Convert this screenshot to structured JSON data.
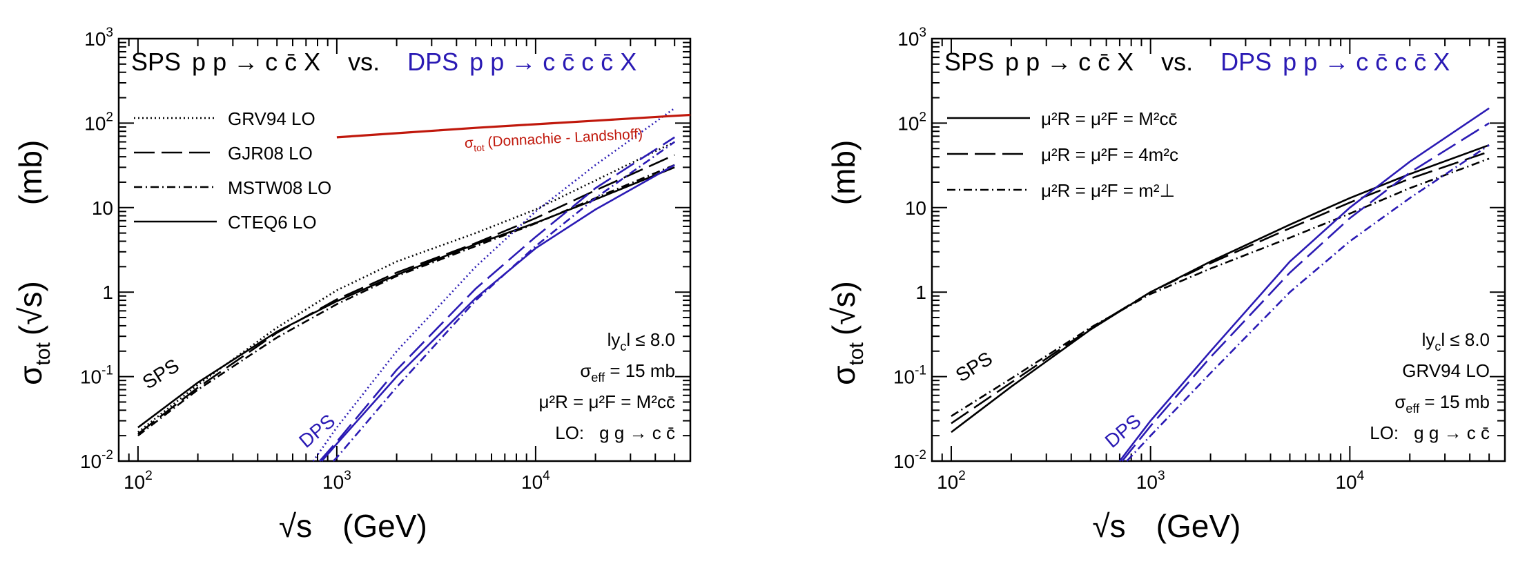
{
  "chart_data": [
    {
      "type": "line",
      "panel": "left",
      "title": {
        "sps_prefix": "SPS",
        "sps_process": "p p → c c̄ X",
        "vs": "vs.",
        "dps_prefix": "DPS",
        "dps_process": "p p → c c̄ c c̄ X"
      },
      "xlabel": {
        "symbol": "√s",
        "unit": "(GeV)"
      },
      "ylabel": {
        "symbol": "σ",
        "sub": "tot",
        "arg": "(√s)",
        "unit": "(mb)"
      },
      "xscale": "log",
      "yscale": "log",
      "xlim": [
        80,
        60000
      ],
      "ylim": [
        0.01,
        1000
      ],
      "x_ticks": [
        {
          "value": 100,
          "base": "10",
          "exp": "2"
        },
        {
          "value": 1000,
          "base": "10",
          "exp": "3"
        },
        {
          "value": 10000,
          "base": "10",
          "exp": "4"
        }
      ],
      "y_ticks": [
        {
          "value": 0.01,
          "base": "10",
          "exp": "-2"
        },
        {
          "value": 0.1,
          "base": "10",
          "exp": "-1"
        },
        {
          "value": 1,
          "base": "1",
          "exp": ""
        },
        {
          "value": 10,
          "base": "10",
          "exp": ""
        },
        {
          "value": 100,
          "base": "10",
          "exp": "2"
        },
        {
          "value": 1000,
          "base": "10",
          "exp": "3"
        }
      ],
      "legend_position": "top-left",
      "legend": [
        {
          "label": "GRV94 LO",
          "style": "dotted"
        },
        {
          "label": "GJR08 LO",
          "style": "long-dash"
        },
        {
          "label": "MSTW08 LO",
          "style": "dash-dot"
        },
        {
          "label": "CTEQ6 LO",
          "style": "solid"
        }
      ],
      "colors": {
        "sps": "#000000",
        "dps": "#2a1ab4",
        "total": "#c0180c"
      },
      "curve_labels": {
        "sps": "SPS",
        "dps": "DPS"
      },
      "total_label": {
        "sigma": "σ",
        "sub": "tot",
        "text": "(Donnachie - Landshoff)"
      },
      "info": {
        "rapidity": {
          "a": "ly",
          "sub": "c",
          "b": "l ≤ 8.0"
        },
        "sigma_eff": {
          "a": "σ",
          "sub": "eff",
          "b": " = 15 mb"
        },
        "scale": {
          "text": "μ²R = μ²F = M²cc̄"
        },
        "process": {
          "a": "LO:",
          "b": "g g → c c̄"
        }
      },
      "series": [
        {
          "name": "GRV94 LO",
          "kind": "SPS",
          "style": "dotted",
          "x": [
            100,
            200,
            500,
            1000,
            2000,
            5000,
            10000,
            20000,
            50000
          ],
          "y": [
            0.022,
            0.08,
            0.38,
            1.05,
            2.3,
            5.0,
            9.5,
            21,
            60
          ]
        },
        {
          "name": "GJR08 LO",
          "kind": "SPS",
          "style": "long-dash",
          "x": [
            100,
            200,
            500,
            1000,
            2000,
            5000,
            10000,
            20000,
            50000
          ],
          "y": [
            0.021,
            0.074,
            0.33,
            0.82,
            1.7,
            3.8,
            7.5,
            16,
            42
          ]
        },
        {
          "name": "MSTW08 LO",
          "kind": "SPS",
          "style": "dash-dot",
          "x": [
            100,
            200,
            500,
            1000,
            2000,
            5000,
            10000,
            20000,
            50000
          ],
          "y": [
            0.02,
            0.07,
            0.29,
            0.72,
            1.55,
            3.5,
            6.5,
            13,
            32
          ]
        },
        {
          "name": "CTEQ6 LO",
          "kind": "SPS",
          "style": "solid",
          "x": [
            100,
            200,
            500,
            1000,
            2000,
            5000,
            10000,
            20000,
            50000
          ],
          "y": [
            0.025,
            0.085,
            0.34,
            0.78,
            1.6,
            3.7,
            6.6,
            12.5,
            30
          ]
        },
        {
          "name": "GRV94 LO",
          "kind": "DPS",
          "style": "dotted",
          "x": [
            760,
            1000,
            2000,
            5000,
            10000,
            20000,
            50000
          ],
          "y": [
            0.01,
            0.025,
            0.2,
            2.0,
            9,
            32,
            150
          ]
        },
        {
          "name": "GJR08 LO",
          "kind": "DPS",
          "style": "long-dash",
          "x": [
            820,
            1000,
            2000,
            5000,
            10000,
            20000,
            50000
          ],
          "y": [
            0.01,
            0.017,
            0.12,
            1.1,
            4.5,
            17,
            68
          ]
        },
        {
          "name": "MSTW08 LO",
          "kind": "DPS",
          "style": "dash-dot",
          "x": [
            960,
            1000,
            2000,
            5000,
            10000,
            20000,
            50000
          ],
          "y": [
            0.01,
            0.011,
            0.075,
            0.8,
            3.5,
            13,
            60
          ]
        },
        {
          "name": "CTEQ6 LO",
          "kind": "DPS",
          "style": "solid",
          "x": [
            840,
            1000,
            2000,
            5000,
            10000,
            20000,
            50000
          ],
          "y": [
            0.01,
            0.016,
            0.1,
            0.85,
            3.3,
            9.5,
            32
          ]
        },
        {
          "name": "σtot (Donnachie - Landshoff)",
          "kind": "total",
          "style": "solid",
          "x": [
            1000,
            2000,
            5000,
            10000,
            20000,
            50000,
            60000
          ],
          "y": [
            68,
            76,
            88,
            97,
            107,
            122,
            125
          ]
        }
      ]
    },
    {
      "type": "line",
      "panel": "right",
      "title": {
        "sps_prefix": "SPS",
        "sps_process": "p p → c c̄ X",
        "vs": "vs.",
        "dps_prefix": "DPS",
        "dps_process": "p p → c c̄ c c̄ X"
      },
      "xlabel": {
        "symbol": "√s",
        "unit": "(GeV)"
      },
      "ylabel": {
        "symbol": "σ",
        "sub": "tot",
        "arg": "(√s)",
        "unit": "(mb)"
      },
      "xscale": "log",
      "yscale": "log",
      "xlim": [
        80,
        60000
      ],
      "ylim": [
        0.01,
        1000
      ],
      "x_ticks": [
        {
          "value": 100,
          "base": "10",
          "exp": "2"
        },
        {
          "value": 1000,
          "base": "10",
          "exp": "3"
        },
        {
          "value": 10000,
          "base": "10",
          "exp": "4"
        }
      ],
      "y_ticks": [
        {
          "value": 0.01,
          "base": "10",
          "exp": "-2"
        },
        {
          "value": 0.1,
          "base": "10",
          "exp": "-1"
        },
        {
          "value": 1,
          "base": "1",
          "exp": ""
        },
        {
          "value": 10,
          "base": "10",
          "exp": ""
        },
        {
          "value": 100,
          "base": "10",
          "exp": "2"
        },
        {
          "value": 1000,
          "base": "10",
          "exp": "3"
        }
      ],
      "legend_position": "top-left",
      "legend": [
        {
          "label": "μ²R = μ²F = M²cc̄",
          "style": "solid"
        },
        {
          "label": "μ²R = μ²F = 4m²c",
          "style": "long-dash"
        },
        {
          "label": "μ²R = μ²F = m²⊥",
          "style": "dash-dot"
        }
      ],
      "colors": {
        "sps": "#000000",
        "dps": "#2a1ab4"
      },
      "curve_labels": {
        "sps": "SPS",
        "dps": "DPS"
      },
      "info": {
        "rapidity": {
          "a": "ly",
          "sub": "c",
          "b": "l ≤ 8.0"
        },
        "pdf": "GRV94 LO",
        "sigma_eff": {
          "a": "σ",
          "sub": "eff",
          "b": " = 15 mb"
        },
        "process": {
          "a": "LO:",
          "b": "g g → c c̄"
        }
      },
      "series": [
        {
          "name": "μ²R = μ²F = M²cc̄",
          "kind": "SPS",
          "style": "solid",
          "x": [
            100,
            200,
            500,
            1000,
            2000,
            5000,
            10000,
            20000,
            50000
          ],
          "y": [
            0.022,
            0.076,
            0.36,
            1.0,
            2.3,
            6.3,
            13,
            25,
            55
          ]
        },
        {
          "name": "μ²R = μ²F = 4m²c",
          "kind": "SPS",
          "style": "long-dash",
          "x": [
            100,
            200,
            500,
            1000,
            2000,
            5000,
            10000,
            20000,
            50000
          ],
          "y": [
            0.028,
            0.085,
            0.37,
            1.0,
            2.2,
            5.7,
            11.5,
            22,
            46
          ]
        },
        {
          "name": "μ²R = μ²F = m²⊥",
          "kind": "SPS",
          "style": "dash-dot",
          "x": [
            100,
            200,
            500,
            1000,
            2000,
            5000,
            10000,
            20000,
            50000
          ],
          "y": [
            0.034,
            0.095,
            0.38,
            0.95,
            1.9,
            4.4,
            8.5,
            17,
            38
          ]
        },
        {
          "name": "μ²R = μ²F = M²cc̄",
          "kind": "DPS",
          "style": "solid",
          "x": [
            700,
            1000,
            2000,
            5000,
            10000,
            20000,
            50000
          ],
          "y": [
            0.01,
            0.03,
            0.2,
            2.3,
            10,
            35,
            150
          ]
        },
        {
          "name": "μ²R = μ²F = 4m²c",
          "kind": "DPS",
          "style": "long-dash",
          "x": [
            720,
            1000,
            2000,
            5000,
            10000,
            20000,
            50000
          ],
          "y": [
            0.01,
            0.026,
            0.17,
            1.7,
            7.5,
            26,
            100
          ]
        },
        {
          "name": "μ²R = μ²F = m²⊥",
          "kind": "DPS",
          "style": "dash-dot",
          "x": [
            760,
            1000,
            2000,
            5000,
            10000,
            20000,
            50000
          ],
          "y": [
            0.01,
            0.02,
            0.11,
            1.0,
            4,
            13,
            55
          ]
        }
      ]
    }
  ]
}
